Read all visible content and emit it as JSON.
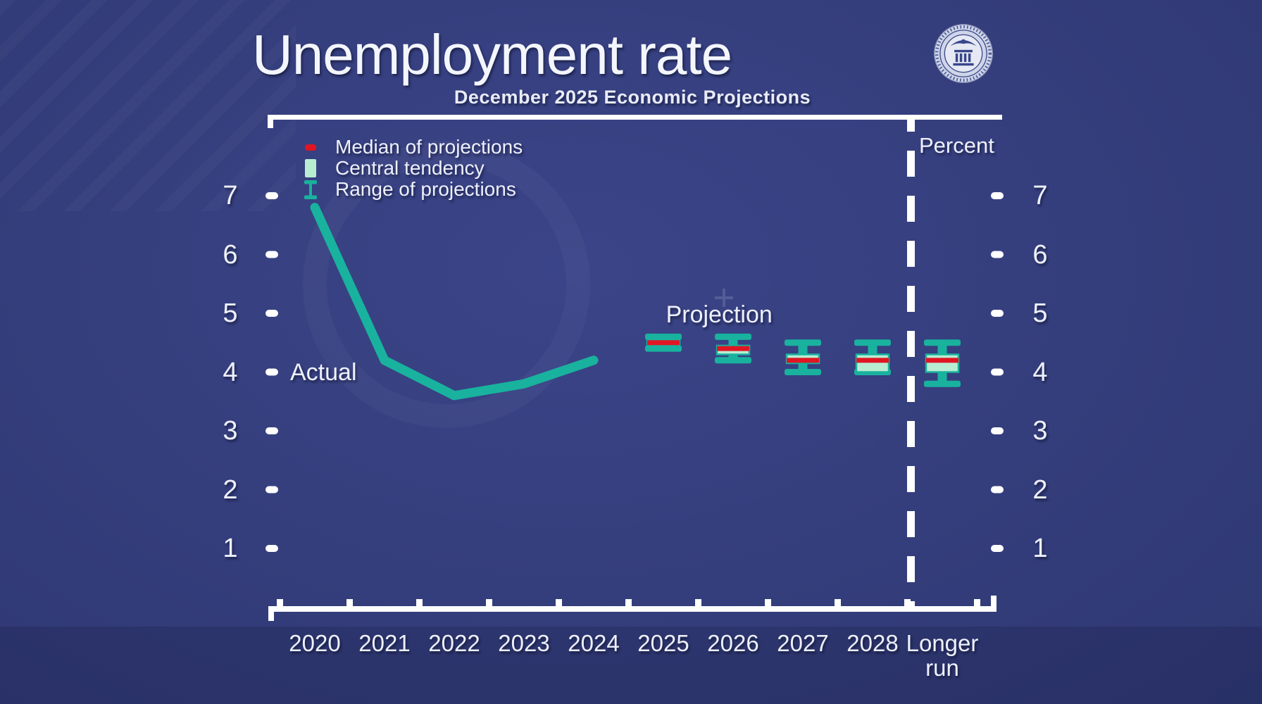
{
  "header": {
    "title": "Unemployment rate",
    "subtitle": "December 2025 Economic Projections"
  },
  "chart_data": {
    "type": "line",
    "title": "Unemployment rate",
    "subtitle": "December 2025 Economic Projections",
    "ylabel_right": "Percent",
    "yticks": [
      7,
      6,
      5,
      4,
      3,
      2,
      1
    ],
    "ylim": [
      0.5,
      7.6
    ],
    "grid": false,
    "categories": [
      "2020",
      "2021",
      "2022",
      "2023",
      "2024",
      "2025",
      "2026",
      "2027",
      "2028",
      "Longer run"
    ],
    "annotations": {
      "actual_label": "Actual",
      "projection_label": "Projection"
    },
    "actual_series": {
      "name": "Actual",
      "years": [
        "2020",
        "2021",
        "2022",
        "2023",
        "2024"
      ],
      "values": [
        6.8,
        4.2,
        3.6,
        3.8,
        4.2
      ]
    },
    "projections": [
      {
        "category": "2025",
        "median": 4.5,
        "central_tendency": [
          4.45,
          4.55
        ],
        "range": [
          4.4,
          4.6
        ]
      },
      {
        "category": "2026",
        "median": 4.4,
        "central_tendency": [
          4.3,
          4.45
        ],
        "range": [
          4.2,
          4.6
        ]
      },
      {
        "category": "2027",
        "median": 4.2,
        "central_tendency": [
          4.15,
          4.3
        ],
        "range": [
          4.0,
          4.5
        ]
      },
      {
        "category": "2028",
        "median": 4.2,
        "central_tendency": [
          4.0,
          4.3
        ],
        "range": [
          4.0,
          4.5
        ]
      },
      {
        "category": "Longer run",
        "median": 4.2,
        "central_tendency": [
          4.0,
          4.3
        ],
        "range": [
          3.8,
          4.5
        ]
      }
    ],
    "separator": {
      "between": [
        "2028",
        "Longer run"
      ],
      "style": "dashed"
    },
    "legend": [
      {
        "swatch": "median-dash",
        "label": "Median of projections"
      },
      {
        "swatch": "central-tendency-box",
        "label": "Central tendency"
      },
      {
        "swatch": "range-ibeam",
        "label": "Range of projections"
      }
    ],
    "colors": {
      "background": "#363f7e",
      "actual_line": "#19b29e",
      "range": "#19b29e",
      "central_tendency": "#b8edd2",
      "median": "#e01623",
      "axis": "#ffffff",
      "text": "#eef0fb"
    }
  }
}
